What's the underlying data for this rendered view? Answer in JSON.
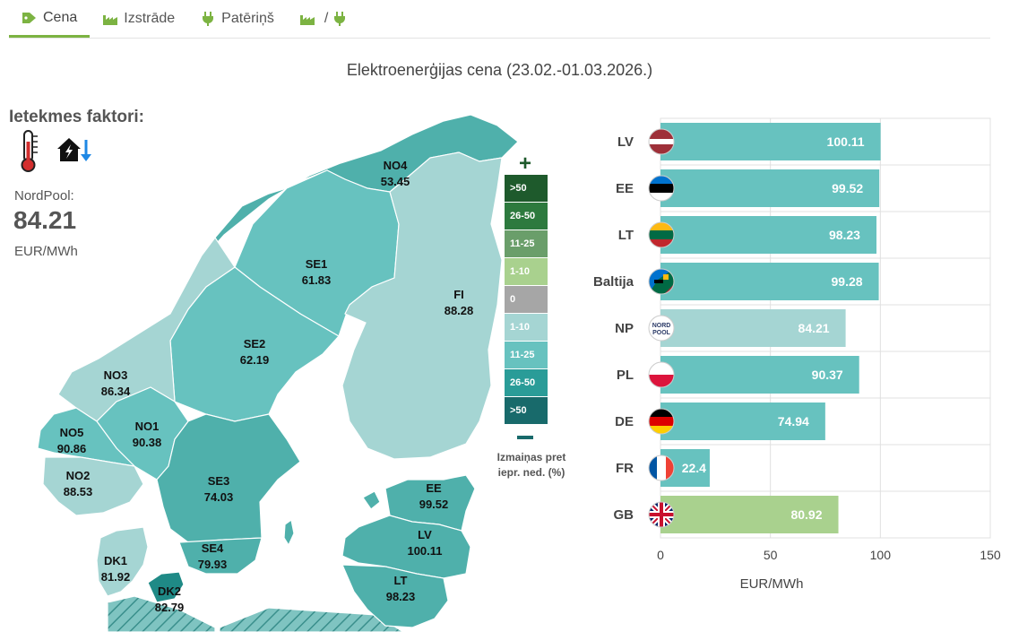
{
  "tabs": [
    {
      "label": "Cena",
      "icon": "tag-icon",
      "active": true
    },
    {
      "label": "Izstrāde",
      "icon": "factory-icon",
      "active": false
    },
    {
      "label": "Patēriņš",
      "icon": "plug-icon",
      "active": false
    },
    {
      "label": "/",
      "icon": "factory-plug-icon",
      "active": false
    }
  ],
  "title": "Elektroenerģijas cena (23.02.-01.03.2026.)",
  "factors": {
    "title": "Ietekmes faktori:",
    "icons": [
      "thermometer-icon",
      "house-power-down-icon"
    ],
    "nordpool_label": "NordPool:",
    "nordpool_value": "84.21",
    "nordpool_unit": "EUR/MWh"
  },
  "map": {
    "regions": [
      {
        "code": "NO4",
        "value": "53.45"
      },
      {
        "code": "SE1",
        "value": "61.83"
      },
      {
        "code": "FI",
        "value": "88.28"
      },
      {
        "code": "SE2",
        "value": "62.19"
      },
      {
        "code": "NO3",
        "value": "86.34"
      },
      {
        "code": "NO1",
        "value": "90.38"
      },
      {
        "code": "NO5",
        "value": "90.86"
      },
      {
        "code": "NO2",
        "value": "88.53"
      },
      {
        "code": "SE3",
        "value": "74.03"
      },
      {
        "code": "SE4",
        "value": "79.93"
      },
      {
        "code": "DK1",
        "value": "81.92"
      },
      {
        "code": "DK2",
        "value": "82.79"
      },
      {
        "code": "EE",
        "value": "99.52"
      },
      {
        "code": "LV",
        "value": "100.11"
      },
      {
        "code": "LT",
        "value": "98.23"
      }
    ]
  },
  "legend": {
    "plus": "+",
    "items": [
      {
        "label": ">50",
        "color": "#1e5a2c"
      },
      {
        "label": "26-50",
        "color": "#2d7a3e"
      },
      {
        "label": "11-25",
        "color": "#6a9e6a"
      },
      {
        "label": "1-10",
        "color": "#a9d18e"
      },
      {
        "label": "0",
        "color": "#a6a6a6"
      },
      {
        "label": "1-10",
        "color": "#a5d5d3"
      },
      {
        "label": "11-25",
        "color": "#67c2bf"
      },
      {
        "label": "26-50",
        "color": "#2a9c98"
      },
      {
        "label": ">50",
        "color": "#186a6b"
      }
    ],
    "caption_line1": "Izmaiņas pret",
    "caption_line2": "iepr. ned. (%)"
  },
  "chart_data": {
    "type": "bar",
    "orientation": "horizontal",
    "categories": [
      "LV",
      "EE",
      "LT",
      "Baltija",
      "NP",
      "PL",
      "DE",
      "FR",
      "GB"
    ],
    "values": [
      100.11,
      99.52,
      98.23,
      99.28,
      84.21,
      90.37,
      74.94,
      22.4,
      80.92
    ],
    "value_labels": [
      "100.11",
      "99.52",
      "98.23",
      "99.28",
      "84.21",
      "90.37",
      "74.94",
      "22.4",
      "80.92"
    ],
    "bar_colors": [
      "#67c2bf",
      "#67c2bf",
      "#67c2bf",
      "#67c2bf",
      "#a5d5d3",
      "#67c2bf",
      "#67c2bf",
      "#67c2bf",
      "#a9d18e"
    ],
    "flags": [
      "flag-lv-icon",
      "flag-ee-icon",
      "flag-lt-icon",
      "flag-baltics-icon",
      "nordpool-logo-icon",
      "flag-pl-icon",
      "flag-de-icon",
      "flag-fr-icon",
      "flag-gb-icon"
    ],
    "xlim": [
      0,
      150
    ],
    "xticks": [
      "0",
      "50",
      "100",
      "150"
    ],
    "xlabel": "EUR/MWh",
    "grid": true
  }
}
